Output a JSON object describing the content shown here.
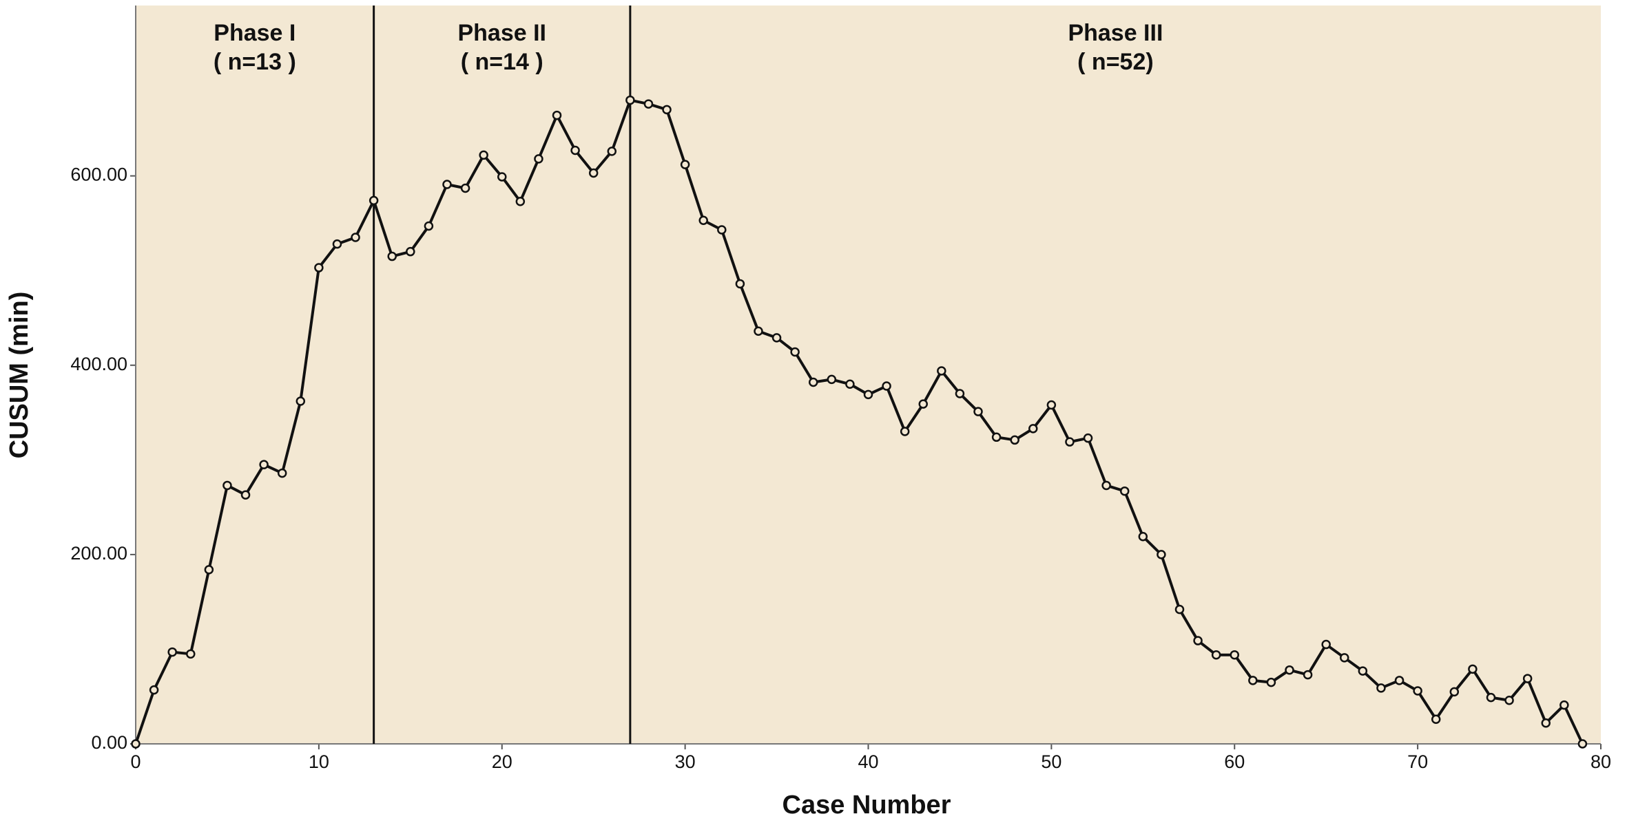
{
  "chart_data": {
    "type": "line",
    "x_label": "Case Number",
    "y_label": "CUSUM (min)",
    "x": [
      0,
      1,
      2,
      3,
      4,
      5,
      6,
      7,
      8,
      9,
      10,
      11,
      12,
      13,
      14,
      15,
      16,
      17,
      18,
      19,
      20,
      21,
      22,
      23,
      24,
      25,
      26,
      27,
      28,
      29,
      30,
      31,
      32,
      33,
      34,
      35,
      36,
      37,
      38,
      39,
      40,
      41,
      42,
      43,
      44,
      45,
      46,
      47,
      48,
      49,
      50,
      51,
      52,
      53,
      54,
      55,
      56,
      57,
      58,
      59,
      60,
      61,
      62,
      63,
      64,
      65,
      66,
      67,
      68,
      69,
      70,
      71,
      72,
      73,
      74,
      75,
      76,
      77,
      78,
      79
    ],
    "series": [
      {
        "color": "#111111",
        "values": [
          0,
          57,
          97,
          95,
          184,
          273,
          263,
          295,
          286,
          362,
          503,
          528,
          535,
          574,
          515,
          520,
          547,
          591,
          587,
          622,
          599,
          573,
          618,
          664,
          627,
          603,
          626,
          680,
          676,
          670,
          612,
          553,
          543,
          486,
          436,
          429,
          414,
          382,
          385,
          380,
          369,
          378,
          330,
          359,
          394,
          370,
          351,
          324,
          321,
          333,
          358,
          319,
          323,
          273,
          267,
          219,
          200,
          142,
          109,
          94,
          94,
          67,
          65,
          78,
          73,
          105,
          91,
          77,
          59,
          67,
          56,
          26,
          55,
          79,
          49,
          46,
          69,
          22,
          41,
          0
        ]
      }
    ],
    "xlim": [
      0,
      80
    ],
    "ylim": [
      0,
      780
    ],
    "xticks": [
      0,
      10,
      20,
      30,
      40,
      50,
      60,
      70,
      80
    ],
    "yticks": [
      {
        "value": 0,
        "label": "0.00"
      },
      {
        "value": 200,
        "label": "200.00"
      },
      {
        "value": 400,
        "label": "400.00"
      },
      {
        "value": 600,
        "label": "600.00"
      }
    ],
    "phase_boundaries": [
      13,
      27
    ],
    "annotations": [
      {
        "title": "Phase I",
        "count": "( n=13 )"
      },
      {
        "title": "Phase II",
        "count": "( n=14 )"
      },
      {
        "title": "Phase III",
        "count": "( n=52)"
      }
    ],
    "background": "#f3e8d3"
  }
}
